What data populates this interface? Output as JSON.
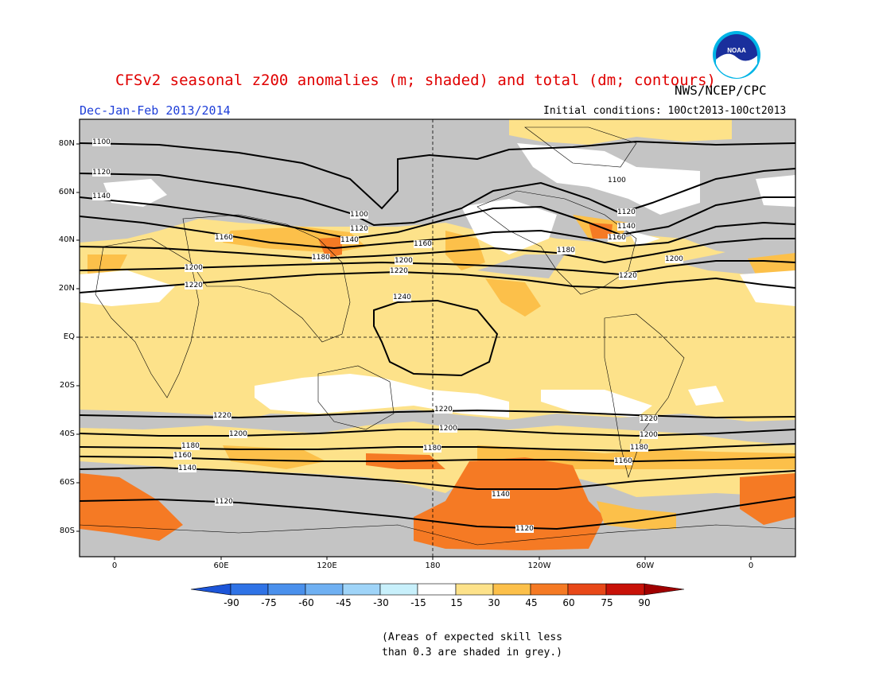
{
  "header": {
    "title": "CFSv2 seasonal z200 anomalies (m; shaded) and total (dm; contours)",
    "agency": "NWS/NCEP/CPC",
    "season": "Dec-Jan-Feb 2013/2014",
    "initial_conditions": "Initial conditions: 10Oct2013-10Oct2013"
  },
  "logo": {
    "icon": "noaa-logo-icon",
    "text": "NOAA"
  },
  "map": {
    "lat_labels": [
      "80N",
      "60N",
      "40N",
      "20N",
      "EQ",
      "20S",
      "40S",
      "60S",
      "80S"
    ],
    "lon_labels": [
      "0",
      "60E",
      "120E",
      "180",
      "120W",
      "60W",
      "0"
    ],
    "contour_labels": [
      "1100",
      "1120",
      "1140",
      "1160",
      "1180",
      "1200",
      "1220",
      "1240"
    ],
    "colors": {
      "grey": "#c4c4c4",
      "light_yellow": "#fde28a",
      "yellow_orange": "#fcc04a",
      "orange": "#f57a24",
      "white": "#ffffff",
      "ocean": "#fde28a"
    }
  },
  "colorbar": {
    "labels": [
      "-90",
      "-75",
      "-60",
      "-45",
      "-30",
      "-15",
      "15",
      "30",
      "45",
      "60",
      "75",
      "90"
    ],
    "colors": [
      "#1c55d8",
      "#2f73e6",
      "#4a90ec",
      "#6fb0f2",
      "#9fd4f8",
      "#c8f0fb",
      "#ffffff",
      "#fde28a",
      "#fcc04a",
      "#f57a24",
      "#e84818",
      "#c81208",
      "#a00000"
    ]
  },
  "note": {
    "line1": "(Areas of expected skill less",
    "line2": "than 0.3 are shaded in grey.)"
  }
}
